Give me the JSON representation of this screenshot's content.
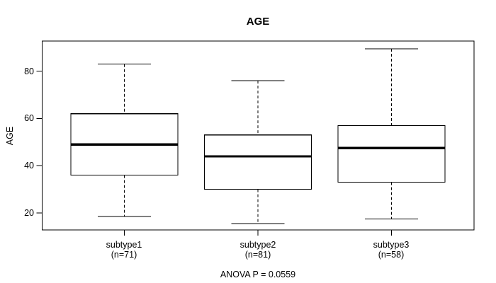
{
  "chart_data": {
    "type": "boxplot",
    "title": "AGE",
    "ylabel": "AGE",
    "xlabel": "",
    "annotation": "ANOVA P = 0.0559",
    "yticks": [
      20,
      40,
      60,
      80
    ],
    "ylim": [
      12.8,
      92.8
    ],
    "grid": false,
    "legend": "none",
    "categories": [
      "subtype1",
      "subtype2",
      "subtype3"
    ],
    "groups": [
      {
        "label": "subtype1",
        "n_label": "(n=71)",
        "n": 71,
        "whisker_low": 18.5,
        "q1": 36,
        "median": 49,
        "q3": 62,
        "whisker_high": 83
      },
      {
        "label": "subtype2",
        "n_label": "(n=81)",
        "n": 81,
        "whisker_low": 15.5,
        "q1": 30,
        "median": 44,
        "q3": 53,
        "whisker_high": 76
      },
      {
        "label": "subtype3",
        "n_label": "(n=58)",
        "n": 58,
        "whisker_low": 17.5,
        "q1": 33,
        "median": 47.5,
        "q3": 57,
        "whisker_high": 89.5
      }
    ],
    "colors": {
      "line": "#000000",
      "box_fill": "#ffffff",
      "background": "#ffffff"
    }
  }
}
